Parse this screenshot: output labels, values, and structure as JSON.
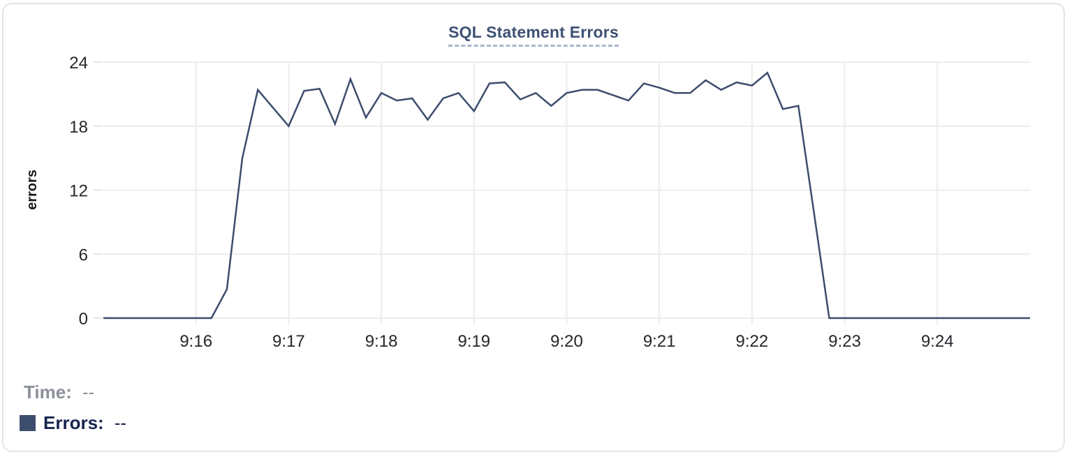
{
  "chart_data": {
    "type": "line",
    "title": "SQL Statement Errors",
    "xlabel": "",
    "ylabel": "errors",
    "grid": true,
    "legend_position": "bottom-left",
    "x_range": [
      "9:15:00",
      "9:25:00"
    ],
    "x_tick_labels": [
      "9:16",
      "9:17",
      "9:18",
      "9:19",
      "9:20",
      "9:21",
      "9:22",
      "9:23",
      "9:24"
    ],
    "ylim": [
      0,
      24
    ],
    "y_ticks": [
      0,
      6,
      12,
      18,
      24
    ],
    "series": [
      {
        "name": "Errors",
        "color": "#3d4d6d",
        "x": [
          "9:15:00",
          "9:15:10",
          "9:15:20",
          "9:15:30",
          "9:15:40",
          "9:15:50",
          "9:16:00",
          "9:16:10",
          "9:16:20",
          "9:16:30",
          "9:16:40",
          "9:16:50",
          "9:17:00",
          "9:17:10",
          "9:17:20",
          "9:17:30",
          "9:17:40",
          "9:17:50",
          "9:18:00",
          "9:18:10",
          "9:18:20",
          "9:18:30",
          "9:18:40",
          "9:18:50",
          "9:19:00",
          "9:19:10",
          "9:19:20",
          "9:19:30",
          "9:19:40",
          "9:19:50",
          "9:20:00",
          "9:20:10",
          "9:20:20",
          "9:20:30",
          "9:20:40",
          "9:20:50",
          "9:21:00",
          "9:21:10",
          "9:21:20",
          "9:21:30",
          "9:21:40",
          "9:21:50",
          "9:22:00",
          "9:22:10",
          "9:22:20",
          "9:22:30",
          "9:22:40",
          "9:22:50",
          "9:23:00",
          "9:23:10",
          "9:23:20",
          "9:23:30",
          "9:23:40",
          "9:23:50",
          "9:24:00",
          "9:24:10",
          "9:24:20",
          "9:24:30",
          "9:24:40",
          "9:24:50",
          "9:25:00"
        ],
        "values": [
          0,
          0,
          0,
          0,
          0,
          0,
          0,
          0,
          2.7,
          15,
          21.4,
          19.7,
          18,
          21.3,
          21.5,
          18.2,
          22.4,
          18.8,
          21.1,
          20.4,
          20.6,
          18.6,
          20.6,
          21.1,
          19.4,
          22,
          22.1,
          20.5,
          21.1,
          19.9,
          21.1,
          21.4,
          21.4,
          20.9,
          20.4,
          22,
          21.6,
          21.1,
          21.1,
          22.3,
          21.4,
          22.1,
          21.8,
          23,
          19.6,
          19.9,
          10,
          0,
          0,
          0,
          0,
          0,
          0,
          0,
          0,
          0,
          0,
          0,
          0,
          0,
          0
        ]
      }
    ]
  },
  "tooltip": {
    "time_label": "Time:",
    "time_value": "--",
    "errors_label": "Errors:",
    "errors_value": "--"
  },
  "colors": {
    "title": "#3e5174",
    "title_underline": "#a9b7d0",
    "line": "#3d4d6d",
    "grid": "#ececec",
    "tick_stub": "#e4e4e4",
    "tick_text": "#25272b",
    "axis_title_text": "#17191e",
    "time_text": "#8b909a",
    "errors_text": "#17254d",
    "card_border": "#e5e5e7",
    "background": "#ffffff"
  }
}
